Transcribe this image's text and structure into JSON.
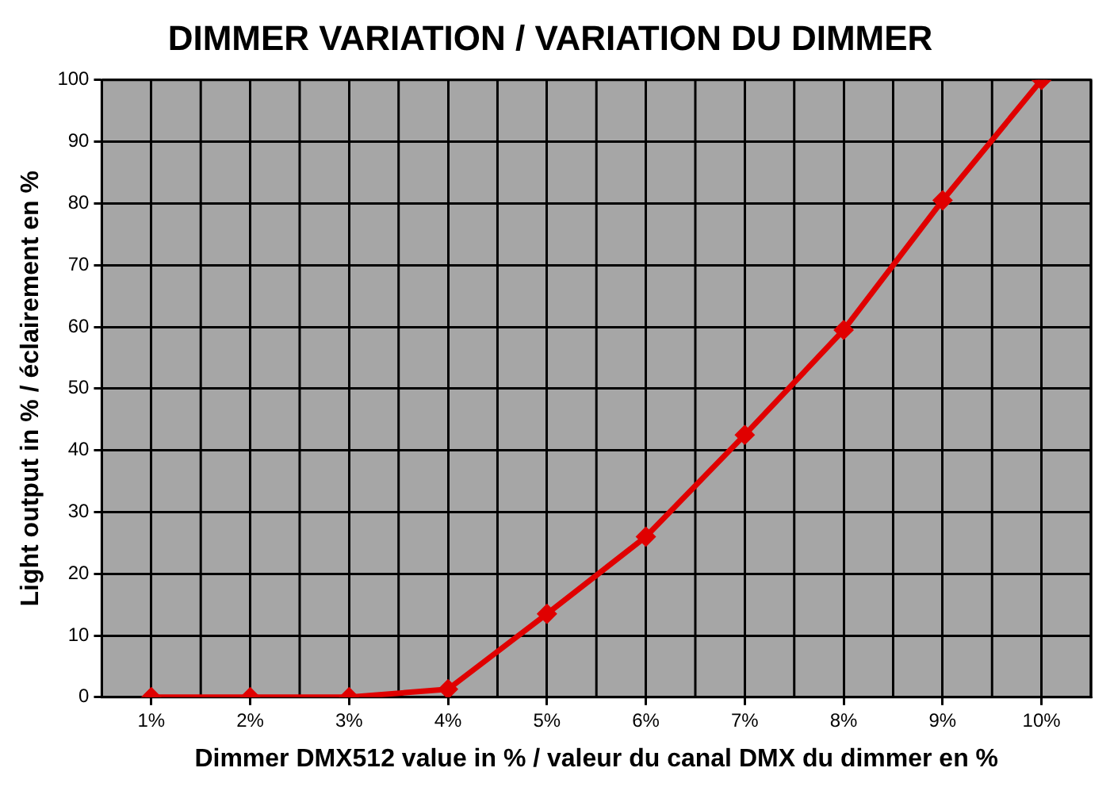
{
  "chart_data": {
    "type": "line",
    "title": "DIMMER VARIATION / VARIATION DU DIMMER",
    "xlabel": "Dimmer DMX512 value in % / valeur du canal DMX du dimmer en %",
    "ylabel": "Light output in % / éclairement en %",
    "categories": [
      "1%",
      "2%",
      "3%",
      "4%",
      "5%",
      "6%",
      "7%",
      "8%",
      "9%",
      "10%"
    ],
    "series": [
      {
        "color": "#e00000",
        "values": [
          0,
          0,
          0,
          1.3,
          13.5,
          26,
          42.5,
          59.5,
          80.5,
          100
        ]
      }
    ],
    "ylim": [
      0,
      100
    ],
    "yticks": [
      0,
      10,
      20,
      30,
      40,
      50,
      60,
      70,
      80,
      90,
      100
    ],
    "grid": true,
    "legend": false,
    "marker": "diamond",
    "line_style": "solid"
  }
}
